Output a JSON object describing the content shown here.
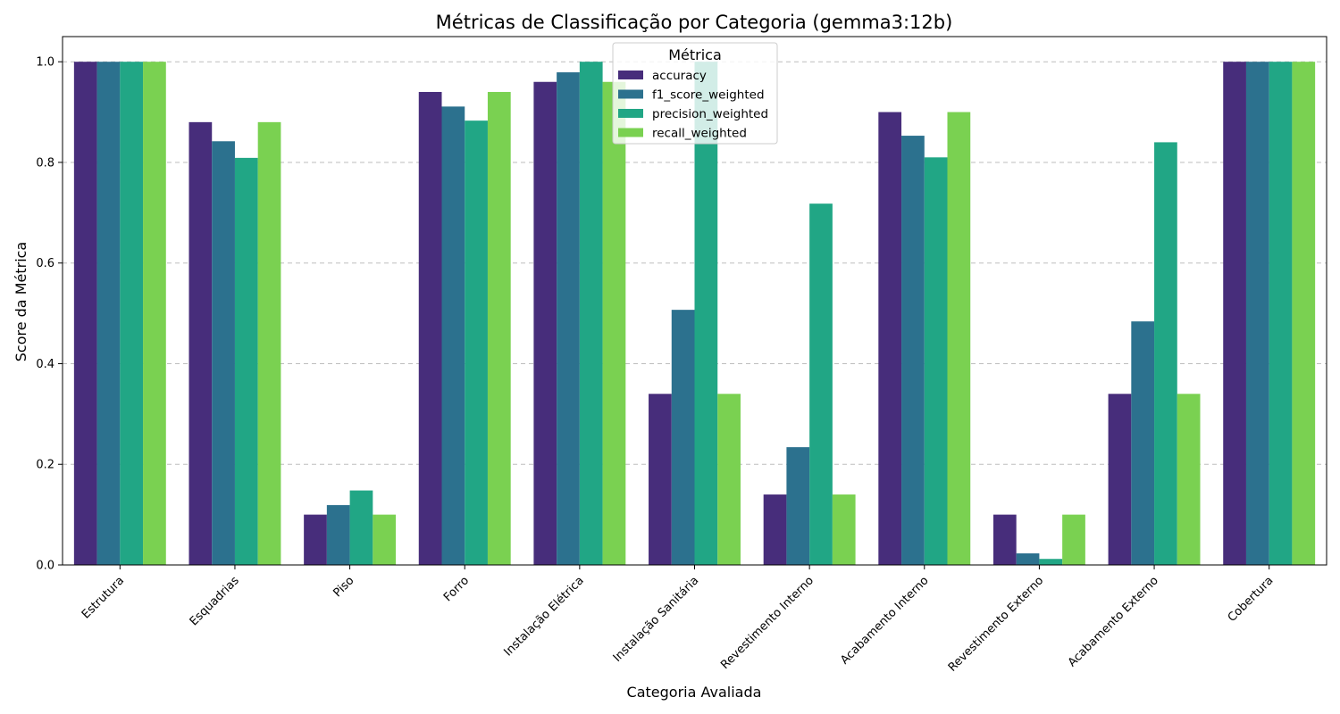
{
  "chart_data": {
    "type": "bar",
    "title": "Métricas de Classificação por Categoria (gemma3:12b)",
    "xlabel": "Categoria Avaliada",
    "ylabel": "Score da Métrica",
    "ylim": [
      0,
      1.05
    ],
    "yticks": [
      "0.0",
      "0.2",
      "0.4",
      "0.6",
      "0.8",
      "1.0"
    ],
    "grid": "y-dashed",
    "legend": {
      "title": "Métrica",
      "placement": "upper-center"
    },
    "categories": [
      "Estrutura",
      "Esquadrias",
      "Piso",
      "Forro",
      "Instalação Elétrica",
      "Instalação Sanitária",
      "Revestimento Interno",
      "Acabamento Interno",
      "Revestimento Externo",
      "Acabamento Externo",
      "Cobertura"
    ],
    "series": [
      {
        "name": "accuracy",
        "color": "#472d7b",
        "values": [
          1.0,
          0.88,
          0.1,
          0.94,
          0.96,
          0.34,
          0.14,
          0.9,
          0.1,
          0.34,
          1.0
        ]
      },
      {
        "name": "f1_score_weighted",
        "color": "#2c718e",
        "values": [
          1.0,
          0.842,
          0.119,
          0.911,
          0.979,
          0.507,
          0.234,
          0.853,
          0.023,
          0.484,
          1.0
        ]
      },
      {
        "name": "precision_weighted",
        "color": "#21a685",
        "values": [
          1.0,
          0.809,
          0.148,
          0.883,
          1.0,
          1.0,
          0.718,
          0.81,
          0.012,
          0.84,
          1.0
        ]
      },
      {
        "name": "recall_weighted",
        "color": "#7ad151",
        "values": [
          1.0,
          0.88,
          0.1,
          0.94,
          0.96,
          0.34,
          0.14,
          0.9,
          0.1,
          0.34,
          1.0
        ]
      }
    ]
  }
}
